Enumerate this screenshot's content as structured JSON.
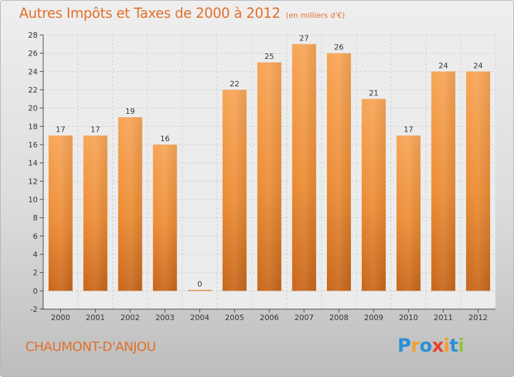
{
  "title": "Autres Impôts et Taxes de 2000 à 2012",
  "subtitle": "(en milliers d'€)",
  "location": "CHAUMONT-D'ANJOU",
  "logo": {
    "letters": [
      "P",
      "r",
      "o",
      "x",
      "i",
      "t",
      "i"
    ],
    "colors": [
      "#2a8fd6",
      "#f2a030",
      "#2a8fd6",
      "#e8412c",
      "#f2a030",
      "#2a8fd6",
      "#8cc63f"
    ]
  },
  "colors": {
    "bar": "#f0903a",
    "bar_dark": "#c8661a",
    "text": "#e0702a",
    "axis": "#444444"
  },
  "chart_data": {
    "type": "bar",
    "categories": [
      "2000",
      "2001",
      "2002",
      "2003",
      "2004",
      "2005",
      "2006",
      "2007",
      "2008",
      "2009",
      "2010",
      "2011",
      "2012"
    ],
    "values": [
      17,
      17,
      19,
      16,
      0,
      22,
      25,
      27,
      26,
      21,
      17,
      24,
      24
    ],
    "ylim": [
      -2,
      28
    ],
    "yticks": [
      -2,
      0,
      2,
      4,
      6,
      8,
      10,
      12,
      14,
      16,
      18,
      20,
      22,
      24,
      26,
      28
    ],
    "grid": true
  }
}
